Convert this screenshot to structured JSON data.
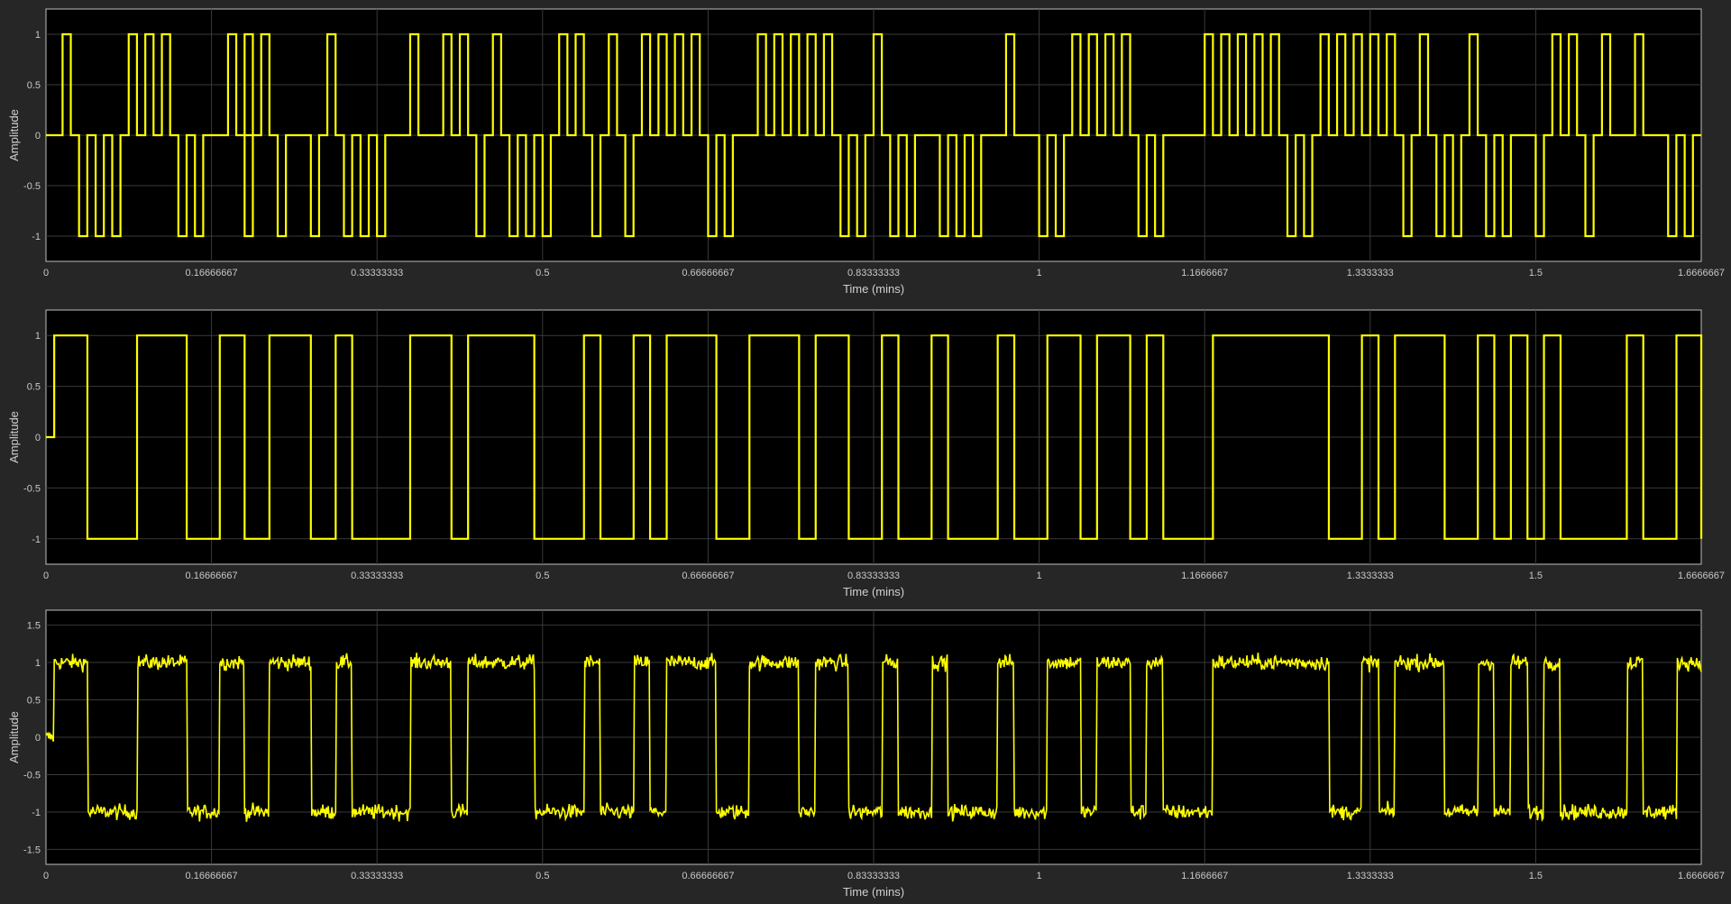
{
  "colors": {
    "background": "#262626",
    "axes": "#000000",
    "grid": "#3a3a3a",
    "signal": "#ffff00"
  },
  "chart_data": [
    {
      "type": "line",
      "title": "",
      "xlabel": "Time (mins)",
      "ylabel": "Amplitude",
      "xlim": [
        0,
        1.6666667
      ],
      "ylim": [
        -1.25,
        1.25
      ],
      "xticks": [
        0,
        0.16666667,
        0.33333333,
        0.5,
        0.66666667,
        0.83333333,
        1,
        1.1666667,
        1.3333333,
        1.5,
        1.6666667
      ],
      "xtick_labels": [
        "0",
        "0.16666667",
        "0.33333333",
        "0.5",
        "0.66666667",
        "0.83333333",
        "1",
        "1.1666667",
        "1.3333333",
        "1.5",
        "1.6666667"
      ],
      "yticks": [
        1,
        0.5,
        0,
        -0.5,
        -1
      ],
      "ytick_labels": [
        "1",
        "0.5",
        "0",
        "-0.5",
        "-1"
      ],
      "grid": true,
      "legend": "none",
      "series": [
        {
          "color": "#ffff00",
          "pulses": [
            [
              0.0167,
              1
            ],
            [
              0.0333,
              -1
            ],
            [
              0.05,
              -1
            ],
            [
              0.0667,
              -1
            ],
            [
              0.0833,
              1
            ],
            [
              0.1,
              1
            ],
            [
              0.1167,
              1
            ],
            [
              0.1333,
              -1
            ],
            [
              0.15,
              -1
            ],
            [
              0.1833,
              1
            ],
            [
              0.2,
              1
            ],
            [
              0.2,
              -1
            ],
            [
              0.2167,
              1
            ],
            [
              0.2333,
              -1
            ],
            [
              0.2667,
              -1
            ],
            [
              0.2833,
              1
            ],
            [
              0.3,
              -1
            ],
            [
              0.3167,
              -1
            ],
            [
              0.3333,
              -1
            ],
            [
              0.3667,
              1
            ],
            [
              0.4,
              1
            ],
            [
              0.4167,
              1
            ],
            [
              0.4333,
              -1
            ],
            [
              0.45,
              1
            ],
            [
              0.4667,
              -1
            ],
            [
              0.4833,
              -1
            ],
            [
              0.5,
              -1
            ],
            [
              0.5167,
              1
            ],
            [
              0.5333,
              1
            ],
            [
              0.55,
              -1
            ],
            [
              0.5667,
              1
            ],
            [
              0.5833,
              -1
            ],
            [
              0.6,
              1
            ],
            [
              0.6167,
              1
            ],
            [
              0.6333,
              1
            ],
            [
              0.65,
              1
            ],
            [
              0.6667,
              -1
            ],
            [
              0.6833,
              -1
            ],
            [
              0.7167,
              1
            ],
            [
              0.7333,
              1
            ],
            [
              0.75,
              1
            ],
            [
              0.7667,
              1
            ],
            [
              0.7833,
              1
            ],
            [
              0.8,
              -1
            ],
            [
              0.8167,
              -1
            ],
            [
              0.8333,
              1
            ],
            [
              0.85,
              -1
            ],
            [
              0.8667,
              -1
            ],
            [
              0.9,
              -1
            ],
            [
              0.9167,
              -1
            ],
            [
              0.9333,
              -1
            ],
            [
              0.9667,
              1
            ],
            [
              1.0,
              -1
            ],
            [
              1.0167,
              -1
            ],
            [
              1.0333,
              1
            ],
            [
              1.05,
              1
            ],
            [
              1.0667,
              1
            ],
            [
              1.0833,
              1
            ],
            [
              1.1,
              -1
            ],
            [
              1.1167,
              -1
            ],
            [
              1.1667,
              1
            ],
            [
              1.1833,
              1
            ],
            [
              1.2,
              1
            ],
            [
              1.2167,
              1
            ],
            [
              1.2333,
              1
            ],
            [
              1.25,
              -1
            ],
            [
              1.2667,
              -1
            ],
            [
              1.2833,
              1
            ],
            [
              1.3,
              1
            ],
            [
              1.3167,
              1
            ],
            [
              1.3333,
              1
            ],
            [
              1.35,
              1
            ],
            [
              1.3667,
              -1
            ],
            [
              1.3833,
              1
            ],
            [
              1.4,
              -1
            ],
            [
              1.4167,
              -1
            ],
            [
              1.4333,
              1
            ],
            [
              1.45,
              -1
            ],
            [
              1.4667,
              -1
            ],
            [
              1.5,
              -1
            ],
            [
              1.5167,
              1
            ],
            [
              1.5333,
              1
            ],
            [
              1.55,
              -1
            ],
            [
              1.5667,
              1
            ],
            [
              1.6,
              1
            ],
            [
              1.6333,
              -1
            ],
            [
              1.65,
              -1
            ]
          ]
        }
      ]
    },
    {
      "type": "line",
      "title": "",
      "xlabel": "Time (mins)",
      "ylabel": "Amplitude",
      "xlim": [
        0,
        1.6666667
      ],
      "ylim": [
        -1.25,
        1.25
      ],
      "xticks": [
        0,
        0.16666667,
        0.33333333,
        0.5,
        0.66666667,
        0.83333333,
        1,
        1.1666667,
        1.3333333,
        1.5,
        1.6666667
      ],
      "xtick_labels": [
        "0",
        "0.16666667",
        "0.33333333",
        "0.5",
        "0.66666667",
        "0.83333333",
        "1",
        "1.1666667",
        "1.3333333",
        "1.5",
        "1.6666667"
      ],
      "yticks": [
        1,
        0.5,
        0,
        -0.5,
        -1
      ],
      "ytick_labels": [
        "1",
        "0.5",
        "0",
        "-0.5",
        "-1"
      ],
      "grid": true,
      "legend": "none",
      "series": [
        {
          "color": "#ffff00",
          "step_times": [
            0,
            0.0083,
            0.0417,
            0.0917,
            0.1417,
            0.175,
            0.2,
            0.225,
            0.2667,
            0.2917,
            0.3083,
            0.3667,
            0.4083,
            0.425,
            0.4917,
            0.5417,
            0.5583,
            0.5917,
            0.6083,
            0.625,
            0.675,
            0.7083,
            0.7583,
            0.775,
            0.8083,
            0.8417,
            0.8583,
            0.8917,
            0.9083,
            0.9583,
            0.975,
            1.0083,
            1.0417,
            1.0583,
            1.0917,
            1.1083,
            1.125,
            1.175,
            1.2917,
            1.325,
            1.3417,
            1.3583,
            1.4083,
            1.4417,
            1.4583,
            1.475,
            1.4917,
            1.5083,
            1.525,
            1.5917,
            1.6083,
            1.6417,
            1.6667
          ],
          "step_values": [
            0,
            1,
            -1,
            1,
            -1,
            1,
            -1,
            1,
            -1,
            1,
            -1,
            1,
            -1,
            1,
            -1,
            1,
            -1,
            1,
            -1,
            1,
            -1,
            1,
            -1,
            1,
            -1,
            1,
            -1,
            1,
            -1,
            1,
            -1,
            1,
            -1,
            1,
            -1,
            1,
            -1,
            1,
            -1,
            1,
            -1,
            1,
            -1,
            1,
            -1,
            1,
            -1,
            1,
            -1,
            1,
            -1,
            1,
            -1
          ]
        }
      ]
    },
    {
      "type": "line",
      "title": "",
      "xlabel": "Time (mins)",
      "ylabel": "Amplitude",
      "xlim": [
        0,
        1.6666667
      ],
      "ylim": [
        -1.7,
        1.7
      ],
      "xticks": [
        0,
        0.16666667,
        0.33333333,
        0.5,
        0.66666667,
        0.83333333,
        1,
        1.1666667,
        1.3333333,
        1.5,
        1.6666667
      ],
      "xtick_labels": [
        "0",
        "0.16666667",
        "0.33333333",
        "0.5",
        "0.66666667",
        "0.83333333",
        "1",
        "1.1666667",
        "1.3333333",
        "1.5",
        "1.6666667"
      ],
      "yticks": [
        1.5,
        1,
        0.5,
        0,
        -0.5,
        -1,
        -1.5
      ],
      "ytick_labels": [
        "1.5",
        "1",
        "0.5",
        "0",
        "-0.5",
        "-1",
        "-1.5"
      ],
      "grid": true,
      "legend": "none",
      "series": [
        {
          "color": "#ffff00",
          "step_times": [
            0,
            0.0083,
            0.0417,
            0.0917,
            0.1417,
            0.175,
            0.2,
            0.225,
            0.2667,
            0.2917,
            0.3083,
            0.3667,
            0.4083,
            0.425,
            0.4917,
            0.5417,
            0.5583,
            0.5917,
            0.6083,
            0.625,
            0.675,
            0.7083,
            0.7583,
            0.775,
            0.8083,
            0.8417,
            0.8583,
            0.8917,
            0.9083,
            0.9583,
            0.975,
            1.0083,
            1.0417,
            1.0583,
            1.0917,
            1.1083,
            1.125,
            1.175,
            1.2917,
            1.325,
            1.3417,
            1.3583,
            1.4083,
            1.4417,
            1.4583,
            1.475,
            1.4917,
            1.5083,
            1.525,
            1.5917,
            1.6083,
            1.6417,
            1.6667
          ],
          "step_values": [
            0,
            1,
            -1,
            1,
            -1,
            1,
            -1,
            1,
            -1,
            1,
            -1,
            1,
            -1,
            1,
            -1,
            1,
            -1,
            1,
            -1,
            1,
            -1,
            1,
            -1,
            1,
            -1,
            1,
            -1,
            1,
            -1,
            1,
            -1,
            1,
            -1,
            1,
            -1,
            1,
            -1,
            1,
            -1,
            1,
            -1,
            1,
            -1,
            1,
            -1,
            1,
            -1,
            1,
            -1,
            1,
            -1,
            1,
            -1
          ],
          "noise_amplitude": 0.1
        }
      ]
    }
  ]
}
